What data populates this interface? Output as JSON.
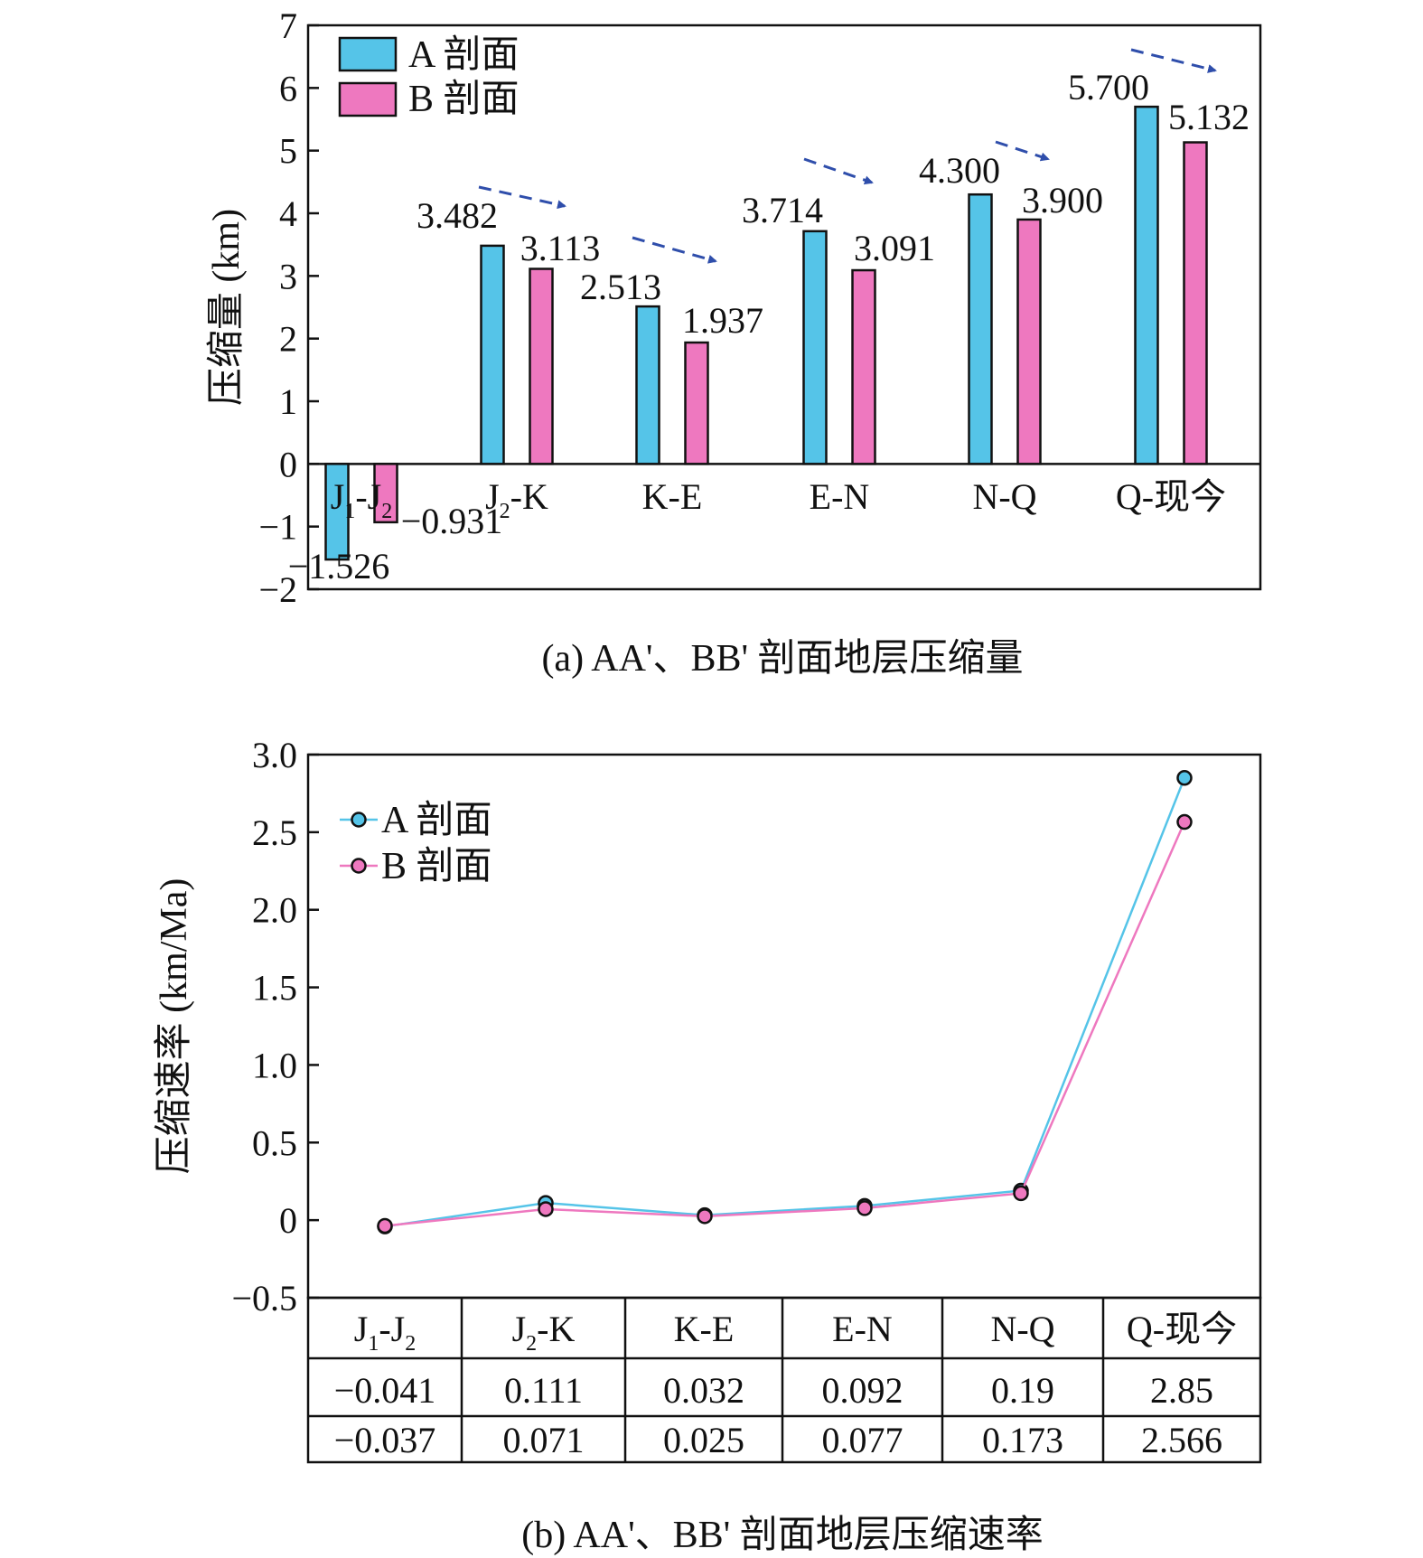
{
  "figure": {
    "caption_a": "(a) AA'、BB' 剖面地层压缩量",
    "caption_b": "(b) AA'、BB' 剖面地层压缩速率"
  },
  "colors": {
    "series_a": "#55c4e8",
    "series_b": "#ee78bf",
    "arrow": "#2f4eab"
  },
  "chart_data": [
    {
      "type": "bar",
      "ylabel": "压缩量 (km)",
      "ylim": [
        -2,
        7
      ],
      "yticks": [
        -2,
        -1,
        0,
        1,
        2,
        3,
        4,
        5,
        6,
        7
      ],
      "ytick_labels": [
        "−2",
        "−1",
        "0",
        "1",
        "2",
        "3",
        "4",
        "5",
        "6",
        "7"
      ],
      "grid": false,
      "legend_position": "top-left",
      "categories": [
        {
          "main": "J",
          "sub1": "1",
          "mid": "-J",
          "sub2": "2",
          "tail": ""
        },
        {
          "main": "J",
          "sub1": "2",
          "mid": "-K",
          "sub2": "",
          "tail": ""
        },
        {
          "main": "K-E",
          "sub1": "",
          "mid": "",
          "sub2": "",
          "tail": ""
        },
        {
          "main": "E-N",
          "sub1": "",
          "mid": "",
          "sub2": "",
          "tail": ""
        },
        {
          "main": "N-Q",
          "sub1": "",
          "mid": "",
          "sub2": "",
          "tail": ""
        },
        {
          "main": "Q-现今",
          "sub1": "",
          "mid": "",
          "sub2": "",
          "tail": ""
        }
      ],
      "series": [
        {
          "name": "A 剖面",
          "values": [
            -1.526,
            3.482,
            2.513,
            3.714,
            4.3,
            5.7
          ],
          "labels": [
            "−1.526",
            "3.482",
            "2.513",
            "3.714",
            "4.300",
            "5.700"
          ]
        },
        {
          "name": "B 剖面",
          "values": [
            -0.931,
            3.113,
            1.937,
            3.091,
            3.9,
            5.132
          ],
          "labels": [
            "−0.931",
            "3.113",
            "1.937",
            "3.091",
            "3.900",
            "5.132"
          ]
        }
      ]
    },
    {
      "type": "line",
      "ylabel": "压缩速率 (km/Ma)",
      "ylim": [
        -0.5,
        3.0
      ],
      "yticks": [
        -0.5,
        0,
        0.5,
        1.0,
        1.5,
        2.0,
        2.5,
        3.0
      ],
      "ytick_labels": [
        "−0.5",
        "0",
        "0.5",
        "1.0",
        "1.5",
        "2.0",
        "2.5",
        "3.0"
      ],
      "grid": false,
      "legend_position": "top-left",
      "categories": [
        {
          "main": "J",
          "sub1": "1",
          "mid": "-J",
          "sub2": "2",
          "tail": ""
        },
        {
          "main": "J",
          "sub1": "2",
          "mid": "-K",
          "sub2": "",
          "tail": ""
        },
        {
          "main": "K-E",
          "sub1": "",
          "mid": "",
          "sub2": "",
          "tail": ""
        },
        {
          "main": "E-N",
          "sub1": "",
          "mid": "",
          "sub2": "",
          "tail": ""
        },
        {
          "main": "N-Q",
          "sub1": "",
          "mid": "",
          "sub2": "",
          "tail": ""
        },
        {
          "main": "Q-现今",
          "sub1": "",
          "mid": "",
          "sub2": "",
          "tail": ""
        }
      ],
      "series": [
        {
          "name": "A 剖面",
          "values": [
            -0.041,
            0.111,
            0.032,
            0.092,
            0.19,
            2.85
          ],
          "labels": [
            "−0.041",
            "0.111",
            "0.032",
            "0.092",
            "0.19",
            "2.85"
          ]
        },
        {
          "name": "B 剖面",
          "values": [
            -0.037,
            0.071,
            0.025,
            0.077,
            0.173,
            2.566
          ],
          "labels": [
            "−0.037",
            "0.071",
            "0.025",
            "0.077",
            "0.173",
            "2.566"
          ]
        }
      ]
    }
  ]
}
